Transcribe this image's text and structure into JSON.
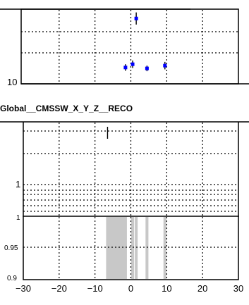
{
  "chart_data": [
    {
      "type": "scatter",
      "title": "",
      "xlabel": "",
      "ylabel": "",
      "xlim": [
        -30,
        30
      ],
      "y_axis_visible_tick": "10",
      "grid": true,
      "series": [
        {
          "points": [
            {
              "x": -1.5,
              "y": 13.5,
              "yerr_lo": 0.7,
              "yerr_hi": 0.7
            },
            {
              "x": 0.5,
              "y": 14.2,
              "yerr_lo": 0.8,
              "yerr_hi": 0.8
            },
            {
              "x": 1.5,
              "y": 24.0,
              "yerr_lo": 1.3,
              "yerr_hi": 1.3
            },
            {
              "x": 4.5,
              "y": 13.3,
              "yerr_lo": 0.6,
              "yerr_hi": 0.6
            },
            {
              "x": 9.5,
              "y": 13.9,
              "yerr_lo": 0.8,
              "yerr_hi": 0.8
            }
          ],
          "color": "#0000ff"
        }
      ]
    },
    {
      "type": "line",
      "title": "Global__CMSSW_X_Y_Z__RECO",
      "xlabel": "",
      "ylabel": "",
      "xlim": [
        -30,
        30
      ],
      "yticks": [
        "1"
      ],
      "grid": true,
      "markers": [
        {
          "x": -6.5,
          "y": 1.45
        }
      ]
    },
    {
      "type": "bar",
      "title": "",
      "xlabel": "",
      "ylabel": "",
      "xlim": [
        -30,
        30
      ],
      "ylim": [
        0.9,
        1.0
      ],
      "yticks": [
        "0.9",
        "0.95",
        "1"
      ],
      "xticks": [
        "−30",
        "−20",
        "−10",
        "0",
        "10",
        "20",
        "30"
      ],
      "xtick_values": [
        -30,
        -20,
        -10,
        0,
        10,
        20,
        30
      ],
      "bands": [
        {
          "x0": -7.0,
          "x1": -1.0
        },
        {
          "x0": 0.0,
          "x1": 1.0
        },
        {
          "x0": 1.0,
          "x1": 2.0
        },
        {
          "x0": 4.0,
          "x1": 5.0
        },
        {
          "x0": 9.0,
          "x1": 10.0
        }
      ],
      "band_color": "#c8c8c8",
      "grid": true
    }
  ]
}
